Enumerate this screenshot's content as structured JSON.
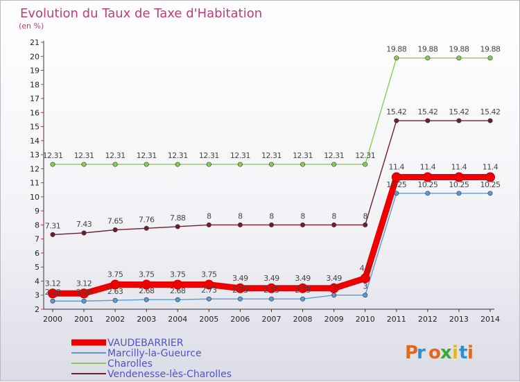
{
  "chart_data": {
    "type": "line",
    "title": "Evolution du Taux de Taxe d'Habitation",
    "subtitle": "(en %)",
    "x": [
      "2000",
      "2001",
      "2002",
      "2003",
      "2004",
      "2005",
      "2006",
      "2007",
      "2008",
      "2009",
      "2010",
      "2011",
      "2012",
      "2013",
      "2014"
    ],
    "ylim": [
      2,
      21
    ],
    "yticks": [
      2,
      3,
      4,
      5,
      6,
      7,
      8,
      9,
      10,
      11,
      12,
      13,
      14,
      15,
      16,
      17,
      18,
      19,
      20,
      21
    ],
    "grid": false,
    "legend_position": "bottom-left",
    "series": [
      {
        "name": "VAUDEBARRIER",
        "color": "#ee0000",
        "values": [
          3.12,
          3.12,
          3.75,
          3.75,
          3.75,
          3.75,
          3.49,
          3.49,
          3.49,
          3.49,
          4.2,
          11.4,
          11.4,
          11.4,
          11.4
        ],
        "labels": [
          "3.12",
          "3.12",
          "3.75",
          "3.75",
          "3.75",
          "3.75",
          "3.49",
          "3.49",
          "3.49",
          "3.49",
          "4.2",
          "11.4",
          "11.4",
          "11.4",
          "11.4"
        ]
      },
      {
        "name": "Marcilly-la-Gueurce",
        "color": "#5b9bd5",
        "values": [
          2.58,
          2.58,
          2.63,
          2.68,
          2.68,
          2.73,
          2.73,
          2.73,
          2.73,
          3,
          3,
          10.25,
          10.25,
          10.25,
          10.25
        ],
        "labels": [
          "2.58",
          "2.58",
          "2.63",
          "2.68",
          "2.68",
          "2.73",
          "2.73",
          "2.73",
          "2.73",
          "3",
          "3",
          "10.25",
          "10.25",
          "10.25",
          "10.25"
        ]
      },
      {
        "name": "Charolles",
        "color": "#88cc55",
        "values": [
          12.31,
          12.31,
          12.31,
          12.31,
          12.31,
          12.31,
          12.31,
          12.31,
          12.31,
          12.31,
          12.31,
          19.88,
          19.88,
          19.88,
          19.88
        ],
        "labels": [
          "12.31",
          "12.31",
          "12.31",
          "12.31",
          "12.31",
          "12.31",
          "12.31",
          "12.31",
          "12.31",
          "12.31",
          "12.31",
          "19.88",
          "19.88",
          "19.88",
          "19.88"
        ]
      },
      {
        "name": "Vendenesse-lès-Charolles",
        "color": "#6b1e2e",
        "values": [
          7.31,
          7.43,
          7.65,
          7.76,
          7.88,
          8,
          8,
          8,
          8,
          8,
          8,
          15.42,
          15.42,
          15.42,
          15.42
        ],
        "labels": [
          "7.31",
          "7.43",
          "7.65",
          "7.76",
          "7.88",
          "8",
          "8",
          "8",
          "8",
          "8",
          "8",
          "15.42",
          "15.42",
          "15.42",
          "15.42"
        ]
      }
    ]
  },
  "logo": {
    "text": "Proxiti",
    "colors": [
      "#e06a1a",
      "#2a8fd6",
      "#e06a1a",
      "#3aaa35",
      "#e0b81a",
      "#2a8fd6",
      "#e06a1a"
    ]
  }
}
